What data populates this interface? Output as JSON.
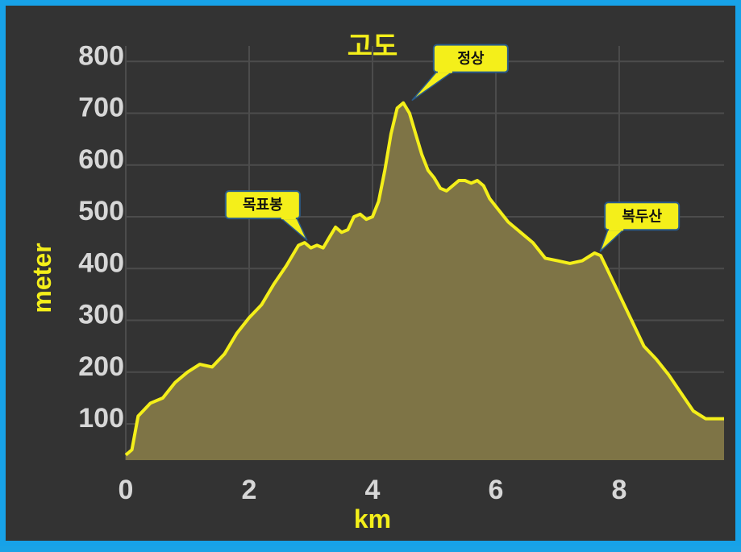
{
  "chart_data": {
    "type": "area",
    "title": "고도",
    "xlabel": "km",
    "ylabel": "meter",
    "xlim": [
      0,
      9.7
    ],
    "ylim": [
      30,
      830
    ],
    "x_ticks": [
      "0",
      "2",
      "4",
      "6",
      "8"
    ],
    "y_ticks": [
      "100",
      "200",
      "300",
      "400",
      "500",
      "600",
      "700",
      "800"
    ],
    "grid": true,
    "colors": {
      "line": "#f4ef1a",
      "fill": "#7e7446",
      "background": "#333333",
      "grid": "#4c4c4c",
      "frame": "#17a2e8",
      "callout": "#f4ef1a"
    },
    "series": [
      {
        "x": [
          0,
          0.1,
          0.2,
          0.4,
          0.6,
          0.8,
          1.0,
          1.2,
          1.4,
          1.6,
          1.8,
          2.0,
          2.2,
          2.4,
          2.6,
          2.8,
          2.9,
          3.0,
          3.1,
          3.2,
          3.3,
          3.4,
          3.5,
          3.6,
          3.7,
          3.8,
          3.9,
          4.0,
          4.1,
          4.2,
          4.3,
          4.4,
          4.5,
          4.6,
          4.7,
          4.8,
          4.9,
          5.0,
          5.1,
          5.2,
          5.3,
          5.4,
          5.5,
          5.6,
          5.7,
          5.8,
          5.9,
          6.0,
          6.2,
          6.4,
          6.6,
          6.8,
          7.0,
          7.2,
          7.4,
          7.6,
          7.7,
          7.8,
          8.0,
          8.2,
          8.4,
          8.6,
          8.8,
          9.0,
          9.2,
          9.4,
          9.5,
          9.7
        ],
        "y": [
          40,
          50,
          115,
          140,
          150,
          180,
          200,
          215,
          210,
          235,
          275,
          305,
          330,
          370,
          405,
          445,
          450,
          440,
          445,
          440,
          460,
          480,
          470,
          475,
          500,
          505,
          495,
          500,
          530,
          590,
          660,
          710,
          720,
          700,
          660,
          620,
          590,
          575,
          555,
          550,
          560,
          570,
          570,
          565,
          570,
          560,
          535,
          520,
          490,
          470,
          450,
          420,
          415,
          410,
          415,
          430,
          425,
          400,
          350,
          300,
          250,
          225,
          195,
          160,
          125,
          110,
          110,
          110
        ]
      }
    ],
    "annotations": [
      {
        "text": "정상",
        "x": 4.6,
        "y": 720
      },
      {
        "text": "목표봉",
        "x": 2.9,
        "y": 450
      },
      {
        "text": "복두산",
        "x": 7.65,
        "y": 428
      }
    ]
  }
}
